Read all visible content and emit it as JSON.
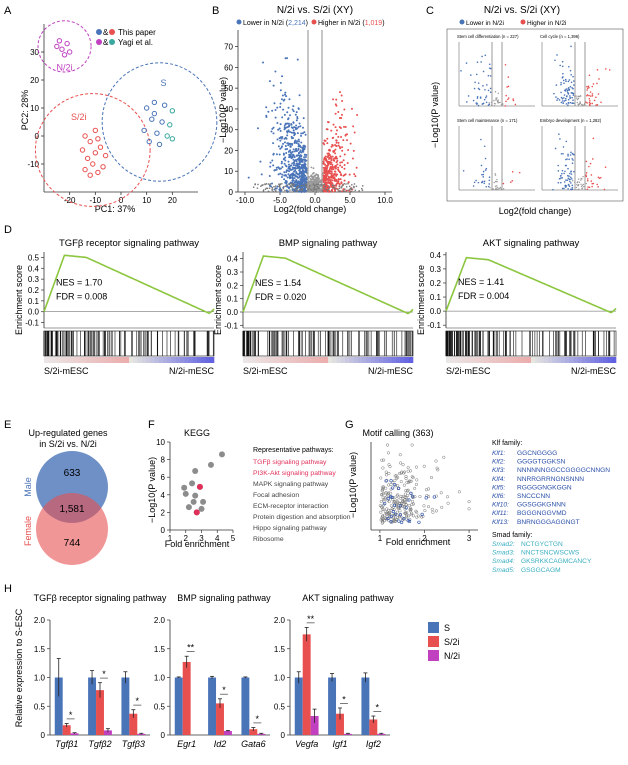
{
  "panel_letters": [
    "A",
    "B",
    "C",
    "D",
    "E",
    "F",
    "G",
    "H"
  ],
  "colors": {
    "blue": "#4a74b8",
    "red": "#e85050",
    "purple": "#c040c0",
    "teal": "#3aa8a0",
    "green": "#8cc63f",
    "grey": "#9a9a9a",
    "dark": "#333333",
    "kegg_red": "#e0305a",
    "motif_blue": "#2a4fa8",
    "smad_cyan": "#3aaec0"
  },
  "panelA": {
    "legend": [
      {
        "label": "This paper"
      },
      {
        "label": "Yagi et al."
      }
    ],
    "legend_amp": "&",
    "chart_data": {
      "type": "scatter",
      "xlabel": "PC1: 37%",
      "ylabel": "PC2: 28%",
      "xlim": [
        -30,
        30
      ],
      "ylim": [
        -20,
        40
      ],
      "xticks": [
        -20,
        -10,
        0,
        10,
        20
      ],
      "yticks": [
        -10,
        0,
        10,
        20,
        30
      ],
      "clusters": [
        {
          "name": "N/2i",
          "center": [
            -22,
            32
          ],
          "points": [
            [
              -24,
              34
            ],
            [
              -21,
              33
            ],
            [
              -23,
              31
            ],
            [
              -20,
              30
            ],
            [
              -22,
              29
            ],
            [
              -25,
              32
            ]
          ]
        },
        {
          "name": "S/2i",
          "center": [
            -11,
            -5
          ],
          "points": [
            [
              -14,
              0
            ],
            [
              -12,
              -2
            ],
            [
              -9,
              -1
            ],
            [
              -15,
              -5
            ],
            [
              -10,
              -6
            ],
            [
              -13,
              -8
            ],
            [
              -8,
              -4
            ],
            [
              -11,
              -10
            ],
            [
              -6,
              -7
            ],
            [
              -14,
              -12
            ],
            [
              -9,
              -13
            ],
            [
              -12,
              -14
            ],
            [
              -7,
              -11
            ],
            [
              -10,
              2
            ]
          ]
        },
        {
          "name": "S",
          "center": [
            15,
            5
          ],
          "points": [
            [
              10,
              10
            ],
            [
              13,
              12
            ],
            [
              17,
              11
            ],
            [
              20,
              9
            ],
            [
              12,
              6
            ],
            [
              16,
              5
            ],
            [
              19,
              4
            ],
            [
              9,
              2
            ],
            [
              14,
              1
            ],
            [
              18,
              0
            ],
            [
              11,
              -2
            ],
            [
              15,
              -3
            ],
            [
              20,
              -1
            ],
            [
              13,
              8
            ]
          ]
        }
      ]
    }
  },
  "panelB": {
    "title": "N/2i vs. S/2i (XY)",
    "legend_lower": "Lower in N/2i (",
    "lower_count": "2,214",
    "legend_higher": "Higher in N/2i (",
    "higher_count": "1,019",
    "close_paren": ")",
    "chart_data": {
      "type": "scatter",
      "xlabel": "Log2(fold change)",
      "ylabel": "−Log10(P value)",
      "xlim": [
        -11,
        11
      ],
      "ylim": [
        0,
        78
      ],
      "xticks": [
        "-10.0",
        "-5.0",
        "0.0",
        "5.0",
        "10.0"
      ],
      "yticks": [
        "0",
        "10",
        "20",
        "30",
        "40",
        "50",
        "60",
        "70"
      ]
    }
  },
  "panelC": {
    "title": "N/2i vs. S/2i (XY)",
    "legend_lower": "Lower in N/2i",
    "legend_higher": "Higher in N/2i",
    "ylabel": "−Log10(P value)",
    "xlabel": "Log2(fold change)",
    "subplots": [
      {
        "title": "Stem cell differentiation (n = 227)"
      },
      {
        "title": "Cell cycle (n = 1,396)"
      },
      {
        "title": "Stem cell maintenance (n = 171)"
      },
      {
        "title": "Embryo development (n = 1,282)"
      }
    ]
  },
  "panelD": {
    "ylabel": "Enrichment score",
    "left_label": "S/2i-mESC",
    "right_label": "N/2i-mESC",
    "gsea": [
      {
        "title": "TGFβ receptor signaling pathway",
        "nes": "NES = 1.70",
        "fdr": "FDR = 0.008",
        "ylim": [
          -0.15,
          0.55
        ],
        "yticks": [
          "0.5",
          "0.4",
          "0.3",
          "0.2",
          "0.1",
          "0.0",
          "-0.1"
        ],
        "peak": 0.52
      },
      {
        "title": "BMP signaling pathway",
        "nes": "NES = 1.54",
        "fdr": "FDR = 0.020",
        "ylim": [
          -0.12,
          0.45
        ],
        "yticks": [
          "0.4",
          "0.3",
          "0.2",
          "0.1",
          "0.0",
          "-0.1"
        ],
        "peak": 0.42
      },
      {
        "title": "AKT signaling pathway",
        "nes": "NES = 1.41",
        "fdr": "FDR = 0.004",
        "ylim": [
          -0.12,
          0.42
        ],
        "yticks": [
          "0.4",
          "0.3",
          "0.2",
          "0.1",
          "0.0",
          "-0.1"
        ],
        "peak": 0.38
      }
    ]
  },
  "panelE": {
    "title_line1": "Up-regulated genes",
    "title_line2": "in S/2i vs. N/2i",
    "male_label": "Male",
    "female_label": "Female",
    "male_only": "633",
    "overlap": "1,581",
    "female_only": "744"
  },
  "panelF": {
    "title": "KEGG",
    "xlabel": "Fold enrichment",
    "ylabel": "−Log10(P value)",
    "xticks": [
      "1",
      "2",
      "3",
      "4",
      "5"
    ],
    "yticks": [
      "0",
      "2",
      "4",
      "6",
      "8",
      "10"
    ],
    "heading": "Representative pathways:",
    "pathways": [
      {
        "label": "TGFβ signaling pathway",
        "highlight": true
      },
      {
        "label": "PI3K-Akt signaling pathway",
        "highlight": true
      },
      {
        "label": "MAPK signaling pathway",
        "highlight": false
      },
      {
        "label": "Focal adhesion",
        "highlight": false
      },
      {
        "label": "ECM-receptor interaction",
        "highlight": false
      },
      {
        "label": "Protein digestion and absorption",
        "highlight": false
      },
      {
        "label": "Hippo signaling pathway",
        "highlight": false
      },
      {
        "label": "Ribosome",
        "highlight": false
      }
    ],
    "chart_data": {
      "type": "scatter",
      "xlabel": "Fold enrichment",
      "ylabel": "−Log10(P value)",
      "xlim": [
        1,
        5
      ],
      "ylim": [
        0,
        10
      ],
      "points": [
        [
          4.3,
          8.6
        ],
        [
          3.6,
          7.4
        ],
        [
          2.6,
          6.7
        ],
        [
          2.4,
          5.3
        ],
        [
          2.9,
          4.9
        ],
        [
          1.9,
          4.8
        ],
        [
          2.0,
          4.1
        ],
        [
          2.6,
          3.9
        ],
        [
          3.1,
          3.2
        ],
        [
          2.2,
          2.6
        ],
        [
          3.0,
          2.4
        ],
        [
          2.7,
          2.0
        ],
        [
          2.5,
          3.2
        ]
      ],
      "highlight_points": [
        [
          2.9,
          4.9
        ],
        [
          2.7,
          2.0
        ]
      ]
    }
  },
  "panelG": {
    "title": "Motif calling (363)",
    "xlabel": "Fold enrichment",
    "ylabel": "−Log10(P value)",
    "xticks": [
      "1",
      "2",
      "3"
    ],
    "klf_heading": "Klf family:",
    "klf": [
      {
        "gene": "Klf1:",
        "motif": "GGCNGGGG"
      },
      {
        "gene": "Klf2:",
        "motif": "GGGGTGGKSN"
      },
      {
        "gene": "Klf3:",
        "motif": "NNNNNNGGCCGGGGCNNGN"
      },
      {
        "gene": "Klf4:",
        "motif": "NNRRGRRNGNSNNN"
      },
      {
        "gene": "Klf5:",
        "motif": "RGGGGNGKGGN"
      },
      {
        "gene": "Klf6:",
        "motif": "SNCCCNN"
      },
      {
        "gene": "Klf10:",
        "motif": "GGSGGKGNNN"
      },
      {
        "gene": "Klf11:",
        "motif": "BGGGNGGVMD"
      },
      {
        "gene": "Klf13:",
        "motif": "BNRNGGGAGGNGT"
      }
    ],
    "smad_heading": "Smad family:",
    "smad": [
      {
        "gene": "Smad2:",
        "motif": "NCTGYCTGN"
      },
      {
        "gene": "Smad3:",
        "motif": "NNCTSNCWSCWS"
      },
      {
        "gene": "Smad4:",
        "motif": "GKSRKKCAGMCANCY"
      },
      {
        "gene": "Smad5:",
        "motif": "GSGGCAGM"
      }
    ]
  },
  "panelH": {
    "ylabel": "Relative expression to S-ESC",
    "group_titles": [
      "TGFβ receptor signaling pathway",
      "BMP signaling pathway",
      "AKT signaling pathway"
    ],
    "legend": [
      {
        "label": "S"
      },
      {
        "label": "S/2i"
      },
      {
        "label": "N/2i"
      }
    ],
    "chart_data": {
      "type": "bar",
      "ylim": [
        0,
        2.0
      ],
      "yticks": [
        "0",
        "0.5",
        "1.0",
        "1.5",
        "2.0"
      ],
      "categories": [
        "Tgfβ1",
        "Tgfβ2",
        "Tgfβ3",
        "Egr1",
        "Id2",
        "Gata6",
        "Vegfa",
        "Igf1",
        "Igf2"
      ],
      "series": [
        {
          "name": "S",
          "values": [
            1.0,
            1.0,
            1.0,
            1.0,
            1.0,
            1.0,
            1.0,
            1.0,
            1.0
          ],
          "errors": [
            0.33,
            0.12,
            0.1,
            0.01,
            0.02,
            0.01,
            0.1,
            0.07,
            0.08
          ]
        },
        {
          "name": "S/2i",
          "values": [
            0.17,
            0.78,
            0.37,
            1.27,
            0.55,
            0.1,
            1.75,
            0.37,
            0.27
          ],
          "errors": [
            0.03,
            0.13,
            0.07,
            0.1,
            0.08,
            0.03,
            0.12,
            0.1,
            0.06
          ]
        },
        {
          "name": "N/2i",
          "values": [
            0.03,
            0.08,
            0.02,
            0.0,
            0.07,
            0.02,
            0.33,
            0.02,
            0.02
          ],
          "errors": [
            0.01,
            0.03,
            0.01,
            0.0,
            0.01,
            0.01,
            0.12,
            0.01,
            0.01
          ]
        }
      ],
      "significance": [
        {
          "category": "Tgfβ1",
          "label": "*"
        },
        {
          "category": "Tgfβ2",
          "label": "*"
        },
        {
          "category": "Tgfβ3",
          "label": "*"
        },
        {
          "category": "Egr1",
          "label": "**"
        },
        {
          "category": "Id2",
          "label": "*"
        },
        {
          "category": "Gata6",
          "label": "*"
        },
        {
          "category": "Vegfa",
          "label": "**"
        },
        {
          "category": "Igf1",
          "label": "*"
        },
        {
          "category": "Igf2",
          "label": "*"
        }
      ]
    }
  }
}
